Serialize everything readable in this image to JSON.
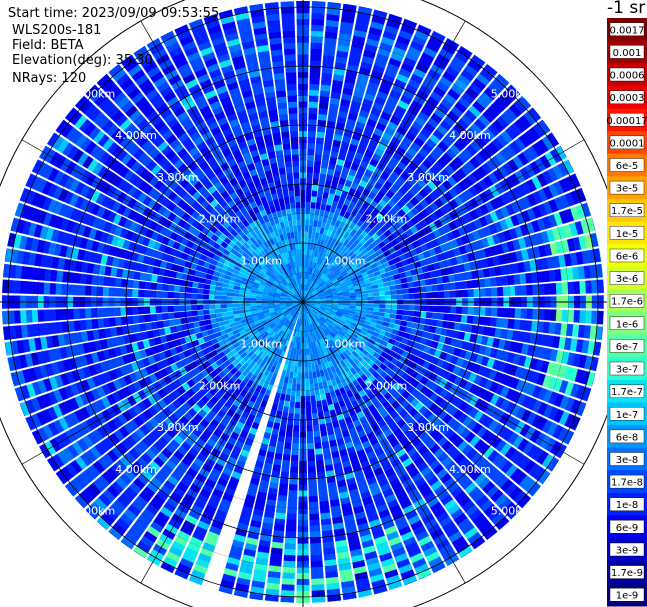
{
  "header": {
    "start_time": "Start time: 2023/09/09 09:53:55",
    "device": "WLS200s-181",
    "field": "Field: BETA",
    "elevation": "Elevation(deg): 35.30",
    "nrays": "NRays: 120"
  },
  "chart_data": {
    "type": "heatmap",
    "projection": "polar",
    "field": "BETA",
    "n_rays": 120,
    "max_range_km": 5.5,
    "range_rings_km": [
      1,
      2,
      3,
      4,
      5
    ],
    "ring_labels": [
      "1.00km",
      "2.00km",
      "3.00km",
      "4.00km",
      "5.00km"
    ],
    "spoke_angles_deg": [
      0,
      30,
      60,
      90,
      120,
      150,
      180,
      210,
      240,
      270,
      300,
      330
    ],
    "colorbar": {
      "unit_label": "-1 sr",
      "tick_labels": [
        "0.0017",
        "0.001",
        "0.0006",
        "0.0003",
        "0.00017",
        "0.0001",
        "6e-5",
        "3e-5",
        "1.7e-5",
        "1e-5",
        "6e-6",
        "3e-6",
        "1.7e-6",
        "1e-6",
        "6e-7",
        "3e-7",
        "1.7e-7",
        "1e-7",
        "6e-8",
        "3e-8",
        "1.7e-8",
        "1e-8",
        "6e-9",
        "3e-9",
        "1.7e-9",
        "1e-9"
      ],
      "colors": [
        "#7f0000",
        "#a00000",
        "#c40000",
        "#e80000",
        "#ff1400",
        "#ff4600",
        "#ff7800",
        "#ffa000",
        "#ffc800",
        "#ffe600",
        "#f0ff0c",
        "#d2ff2a",
        "#a6ff56",
        "#7cff80",
        "#56ffa6",
        "#2affd0",
        "#0ae4f2",
        "#00c4ff",
        "#0098ff",
        "#0070ff",
        "#0048ff",
        "#0020ff",
        "#0000f0",
        "#0000c8",
        "#0000a0",
        "#000080"
      ]
    },
    "dominant_values": "1e-8 to 3e-8",
    "colors": {
      "rings": "#000000",
      "range_labels": "#ffffff",
      "background": "#ffffff"
    }
  }
}
